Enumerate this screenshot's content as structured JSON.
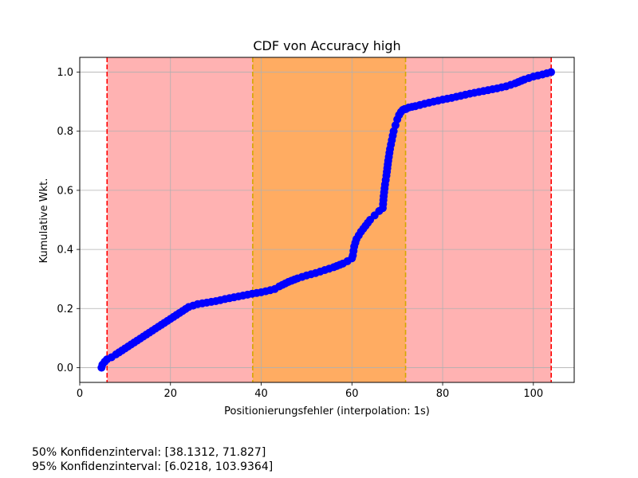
{
  "chart_data": {
    "type": "line",
    "title": "CDF von Accuracy high",
    "xlabel": "Positionierungsfehler (interpolation: 1s)",
    "ylabel": "Kumulative Wkt.",
    "xlim": [
      0,
      109
    ],
    "ylim": [
      -0.05,
      1.05
    ],
    "xticks": [
      0,
      20,
      40,
      60,
      80,
      100
    ],
    "xtick_labels": [
      "0",
      "20",
      "40",
      "60",
      "80",
      "100"
    ],
    "yticks": [
      0.0,
      0.2,
      0.4,
      0.6,
      0.8,
      1.0
    ],
    "ytick_labels": [
      "0.0",
      "0.2",
      "0.4",
      "0.6",
      "0.8",
      "1.0"
    ],
    "grid": true,
    "series": [
      {
        "color": "#0000ff",
        "marker": "circle",
        "x": [
          4.8,
          5.0,
          5.5,
          6.0,
          7,
          8,
          10,
          12,
          14,
          16,
          18,
          20,
          22,
          24,
          25,
          26,
          28,
          30,
          32,
          34,
          36,
          38,
          40,
          42,
          43,
          44,
          46,
          48,
          50,
          52,
          54,
          56,
          58,
          59,
          60.0,
          60.2,
          60.5,
          61,
          62,
          63,
          64,
          65,
          66,
          66.8,
          67.0,
          67.3,
          67.6,
          68.0,
          68.4,
          68.8,
          69.2,
          69.6,
          70.0,
          70.4,
          70.8,
          71.2,
          71.6,
          71.9,
          72.5,
          74,
          76,
          78,
          80,
          82,
          84,
          86,
          88,
          90,
          92,
          94,
          96,
          98,
          100,
          102,
          103.9
        ],
        "y": [
          0.0,
          0.01,
          0.02,
          0.028,
          0.035,
          0.045,
          0.065,
          0.085,
          0.105,
          0.125,
          0.145,
          0.165,
          0.185,
          0.205,
          0.21,
          0.215,
          0.22,
          0.225,
          0.232,
          0.238,
          0.244,
          0.25,
          0.255,
          0.262,
          0.266,
          0.275,
          0.29,
          0.302,
          0.312,
          0.32,
          0.33,
          0.34,
          0.352,
          0.36,
          0.37,
          0.38,
          0.41,
          0.435,
          0.46,
          0.48,
          0.5,
          0.515,
          0.53,
          0.54,
          0.58,
          0.62,
          0.65,
          0.7,
          0.74,
          0.77,
          0.8,
          0.82,
          0.84,
          0.855,
          0.865,
          0.872,
          0.875,
          0.875,
          0.88,
          0.885,
          0.893,
          0.9,
          0.907,
          0.913,
          0.92,
          0.927,
          0.933,
          0.939,
          0.945,
          0.952,
          0.962,
          0.975,
          0.985,
          0.992,
          1.0
        ]
      }
    ],
    "bands": [
      {
        "x0": 6.0218,
        "x1": 103.9364,
        "fill": "#ff0000",
        "fill_opacity": 0.3,
        "line_color": "#ff0000"
      },
      {
        "x0": 38.1312,
        "x1": 71.827,
        "fill": "#ffa500",
        "fill_opacity": 0.45,
        "line_color": "#d4a800"
      }
    ]
  },
  "annotations": {
    "ci50": "50% Konfidenzinterval: [38.1312, 71.827]",
    "ci95": "95% Konfidenzinterval: [6.0218, 103.9364]"
  }
}
